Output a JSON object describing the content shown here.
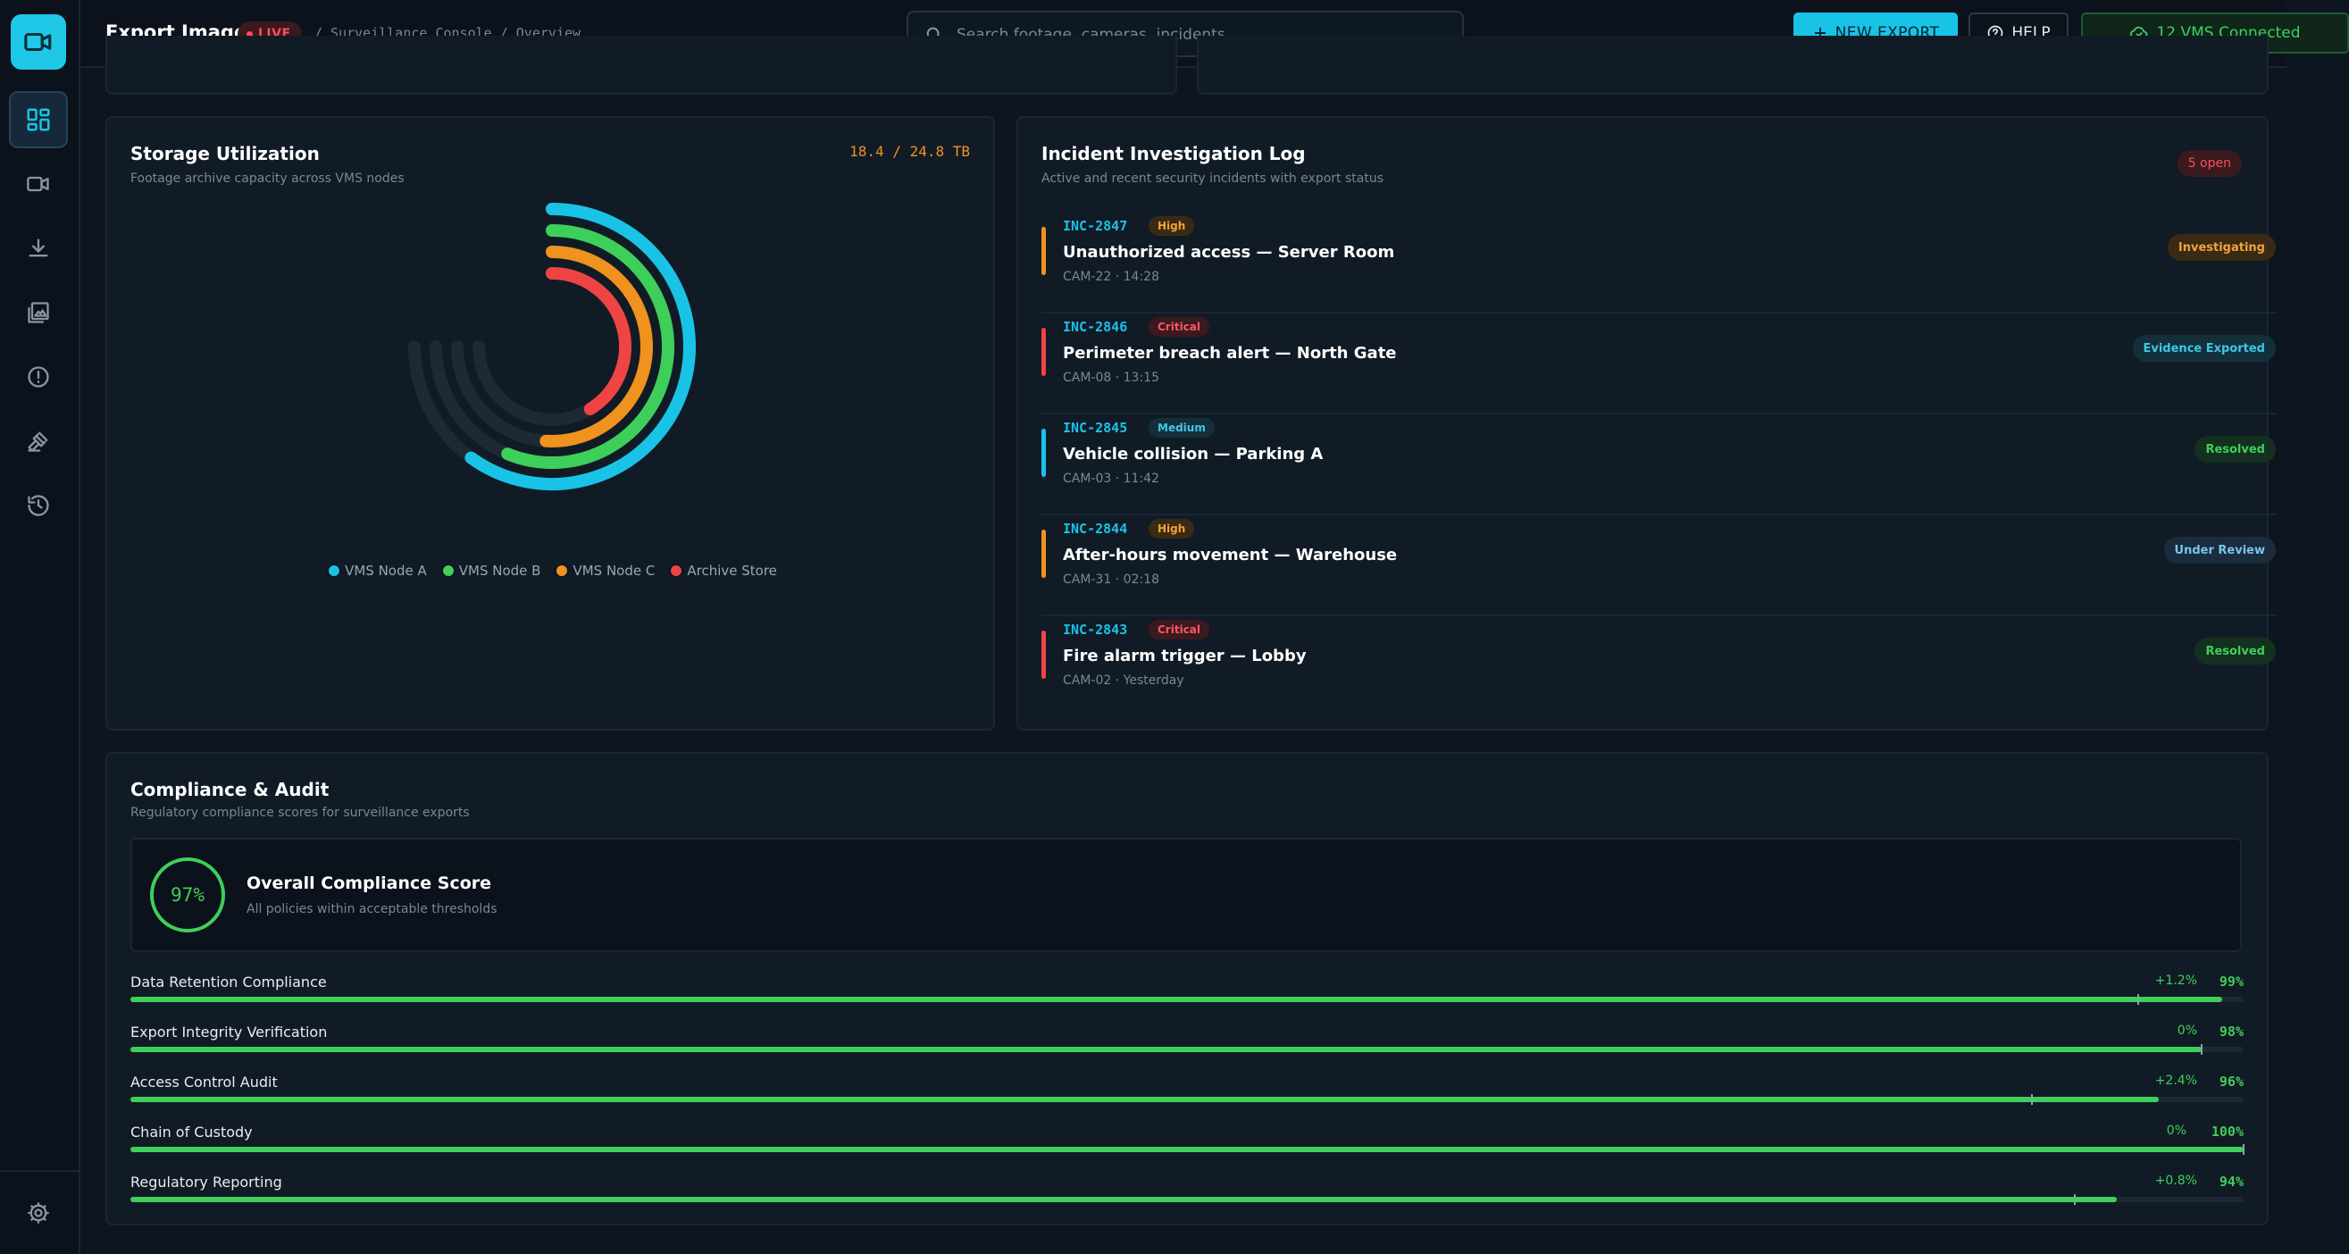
{
  "header": {
    "title": "Export Image",
    "live": "LIVE",
    "breadcrumb": "/ Surveillance Console / Overview",
    "search_placeholder": "Search footage, cameras, incidents...",
    "new_export": "NEW EXPORT",
    "help": "HELP",
    "vms_status": "12 VMS Connected"
  },
  "sidebar": {
    "items": [
      {
        "icon": "dashboard-icon",
        "active": true
      },
      {
        "icon": "camera-icon",
        "active": false
      },
      {
        "icon": "download-icon",
        "active": false
      },
      {
        "icon": "gallery-icon",
        "active": false
      },
      {
        "icon": "alert-icon",
        "active": false
      },
      {
        "icon": "gavel-icon",
        "active": false
      },
      {
        "icon": "history-icon",
        "active": false
      }
    ],
    "bottom_icon": "gear-icon"
  },
  "storage": {
    "title": "Storage Utilization",
    "subtitle": "Footage archive capacity across VMS nodes",
    "total": "18.4 / 24.8 TB"
  },
  "chart_data": {
    "type": "radial-bar",
    "series": [
      {
        "name": "VMS Node A",
        "value": 0.8,
        "color": "#19c3e6"
      },
      {
        "name": "VMS Node B",
        "value": 0.75,
        "color": "#3ecf5a"
      },
      {
        "name": "VMS Node C",
        "value": 0.68,
        "color": "#f0921e"
      },
      {
        "name": "Archive Store",
        "value": 0.55,
        "color": "#ef4444"
      }
    ],
    "track_color": "#1e2936",
    "legend_position": "bottom"
  },
  "incidents": {
    "title": "Incident Investigation Log",
    "subtitle": "Active and recent security incidents with export status",
    "open_badge": "5 open",
    "items": [
      {
        "id": "INC-2847",
        "severity": "High",
        "title": "Unauthorized access — Server Room",
        "meta": "CAM-22 · 14:28",
        "status": "Investigating",
        "bar_color": "#f0921e",
        "sev_kind": "high",
        "status_kind": "investigating"
      },
      {
        "id": "INC-2846",
        "severity": "Critical",
        "title": "Perimeter breach alert — North Gate",
        "meta": "CAM-08 · 13:15",
        "status": "Evidence Exported",
        "bar_color": "#ef4444",
        "sev_kind": "critical",
        "status_kind": "exported"
      },
      {
        "id": "INC-2845",
        "severity": "Medium",
        "title": "Vehicle collision — Parking A",
        "meta": "CAM-03 · 11:42",
        "status": "Resolved",
        "bar_color": "#19c3e6",
        "sev_kind": "medium",
        "status_kind": "resolved"
      },
      {
        "id": "INC-2844",
        "severity": "High",
        "title": "After-hours movement — Warehouse",
        "meta": "CAM-31 · 02:18",
        "status": "Under Review",
        "bar_color": "#f0921e",
        "sev_kind": "high",
        "status_kind": "review"
      },
      {
        "id": "INC-2843",
        "severity": "Critical",
        "title": "Fire alarm trigger — Lobby",
        "meta": "CAM-02 · Yesterday",
        "status": "Resolved",
        "bar_color": "#ef4444",
        "sev_kind": "critical",
        "status_kind": "resolved"
      }
    ]
  },
  "compliance": {
    "title": "Compliance & Audit",
    "subtitle": "Regulatory compliance scores for surveillance exports",
    "overall_score": "97%",
    "overall_title": "Overall Compliance Score",
    "overall_sub": "All policies within acceptable thresholds",
    "rows": [
      {
        "label": "Data Retention Compliance",
        "delta": "+1.2%",
        "pct": "99%",
        "value": 0.99,
        "target": 0.95
      },
      {
        "label": "Export Integrity Verification",
        "delta": "0%",
        "pct": "98%",
        "value": 0.98,
        "target": 0.98
      },
      {
        "label": "Access Control Audit",
        "delta": "+2.4%",
        "pct": "96%",
        "value": 0.96,
        "target": 0.9
      },
      {
        "label": "Chain of Custody",
        "delta": "0%",
        "pct": "100%",
        "value": 1.0,
        "target": 1.0
      },
      {
        "label": "Regulatory Reporting",
        "delta": "+0.8%",
        "pct": "94%",
        "value": 0.94,
        "target": 0.92
      }
    ]
  }
}
